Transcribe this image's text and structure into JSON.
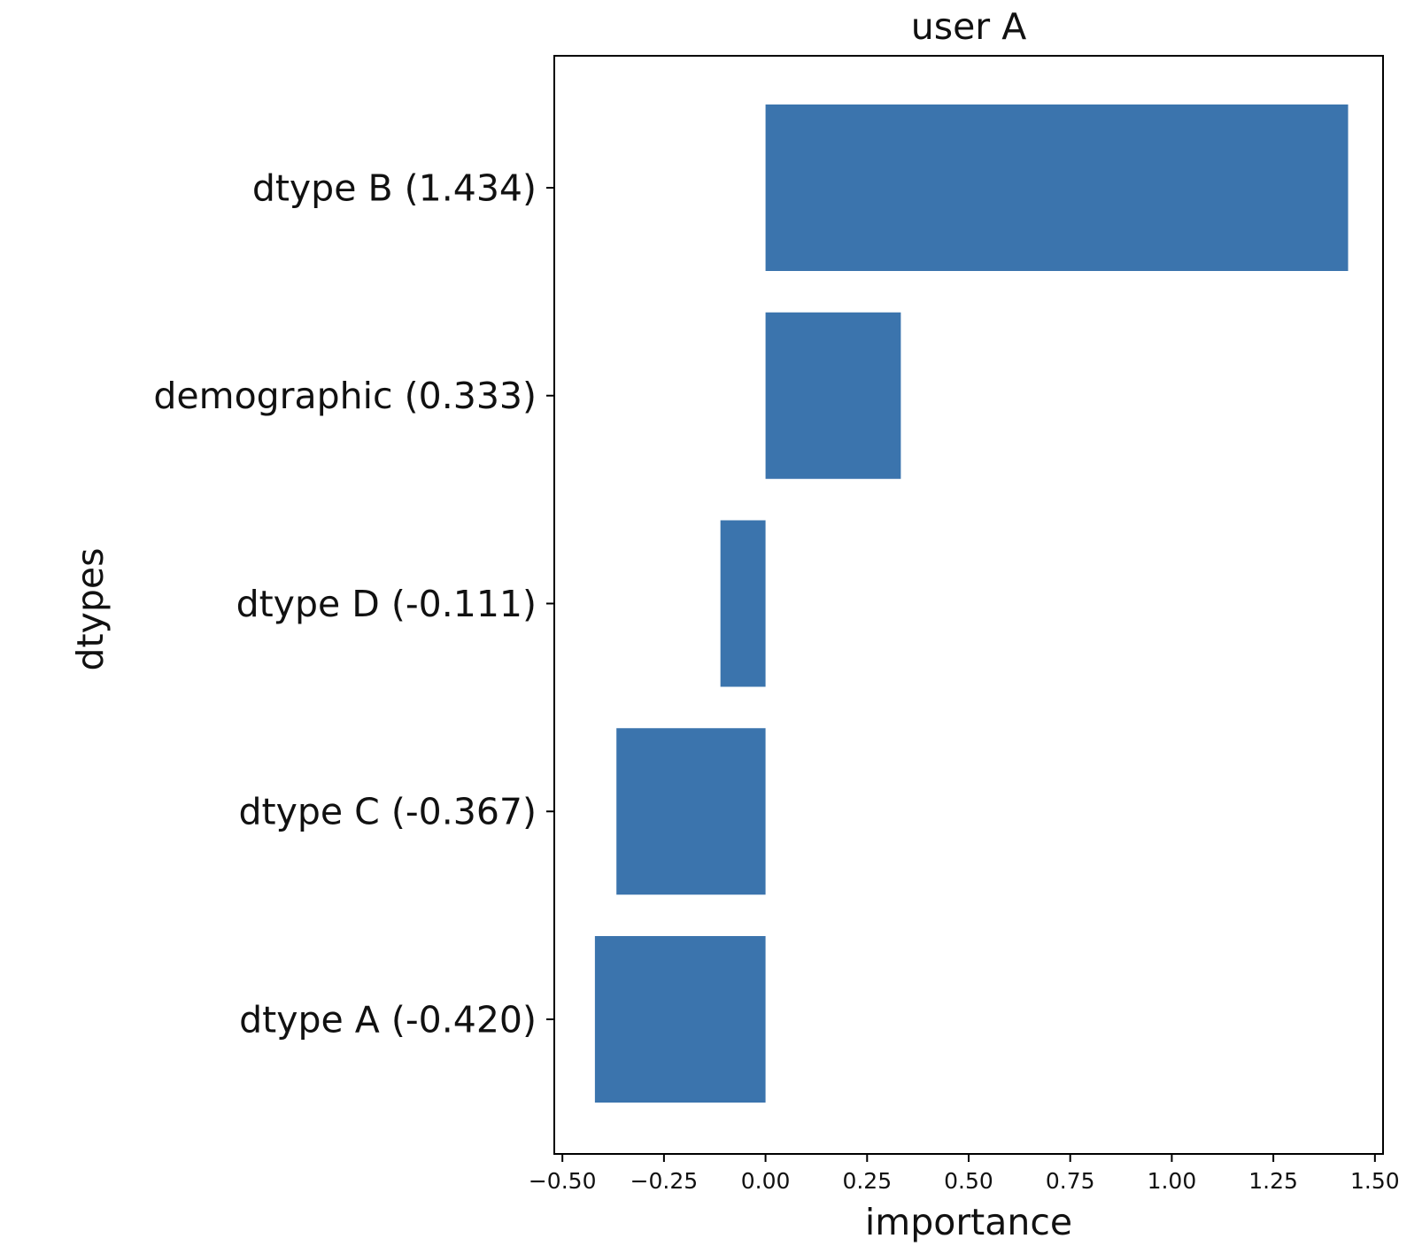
{
  "chart_data": {
    "type": "bar",
    "orientation": "horizontal",
    "title": "user A",
    "xlabel": "importance",
    "ylabel": "dtypes",
    "categories": [
      "dtype B (1.434)",
      "demographic (0.333)",
      "dtype D (-0.111)",
      "dtype C (-0.367)",
      "dtype A (-0.420)"
    ],
    "values": [
      1.434,
      0.333,
      -0.111,
      -0.367,
      -0.42
    ],
    "xlim": [
      -0.52,
      1.52
    ],
    "xticks": [
      -0.5,
      -0.25,
      0.0,
      0.25,
      0.5,
      0.75,
      1.0,
      1.25,
      1.5
    ],
    "xtick_labels": [
      "−0.50",
      "−0.25",
      "0.00",
      "0.25",
      "0.50",
      "0.75",
      "1.00",
      "1.25",
      "1.50"
    ],
    "bar_color": "#3b74ad",
    "grid": false,
    "legend": "none"
  }
}
